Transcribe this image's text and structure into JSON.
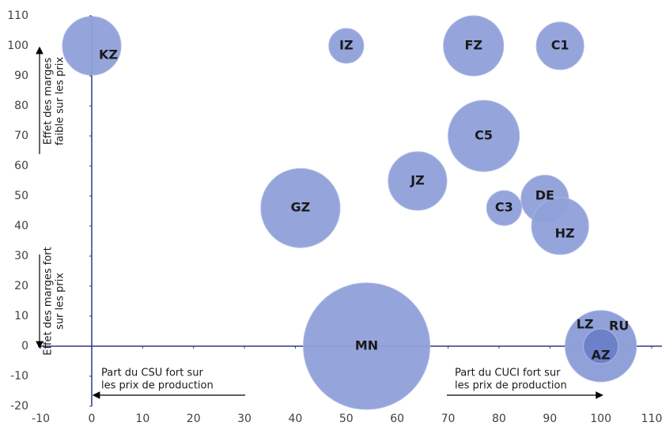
{
  "chart_data": {
    "type": "bubble",
    "labels": [
      "KZ",
      "IZ",
      "FZ",
      "C1",
      "C5",
      "JZ",
      "GZ",
      "C3",
      "DE",
      "HZ",
      "MN",
      "LZ",
      "RU",
      "AZ"
    ],
    "x": [
      0,
      50,
      75,
      92,
      77,
      64,
      41,
      81,
      89,
      92,
      54,
      100,
      100,
      100
    ],
    "values": [
      100,
      100,
      100,
      100,
      70,
      55,
      46,
      46,
      49,
      40,
      0,
      0,
      0,
      0
    ],
    "sizes": [
      37,
      22,
      38,
      30,
      45,
      37,
      50,
      22,
      30,
      36,
      80,
      45,
      45,
      22
    ],
    "colors": [
      "#8fa0d9",
      "#8fa0d9",
      "#8fa0d9",
      "#8fa0d9",
      "#8fa0d9",
      "#8fa0d9",
      "#8fa0d9",
      "#8fa0d9",
      "#8fa0d9",
      "#8fa0d9",
      "#8fa0d9",
      "#8fa0d9",
      "#8fa0d9",
      "#6a80c8"
    ],
    "xlim": [
      -10,
      110
    ],
    "ylim": [
      -20,
      110
    ],
    "xticks": [
      -10,
      0,
      10,
      20,
      30,
      40,
      50,
      60,
      70,
      80,
      90,
      100,
      110
    ],
    "yticks": [
      -20,
      -10,
      0,
      10,
      20,
      30,
      40,
      50,
      60,
      70,
      80,
      90,
      100,
      110
    ],
    "annotations": [
      {
        "lines": [
          "Effet des marges",
          "faible sur les prix"
        ]
      },
      {
        "lines": [
          "Effet des marges fort",
          "sur les prix"
        ]
      },
      {
        "lines": [
          "Part du CSU fort sur",
          "les prix de production"
        ]
      },
      {
        "lines": [
          "Part du CUCI fort sur",
          "les prix de production"
        ]
      }
    ]
  }
}
